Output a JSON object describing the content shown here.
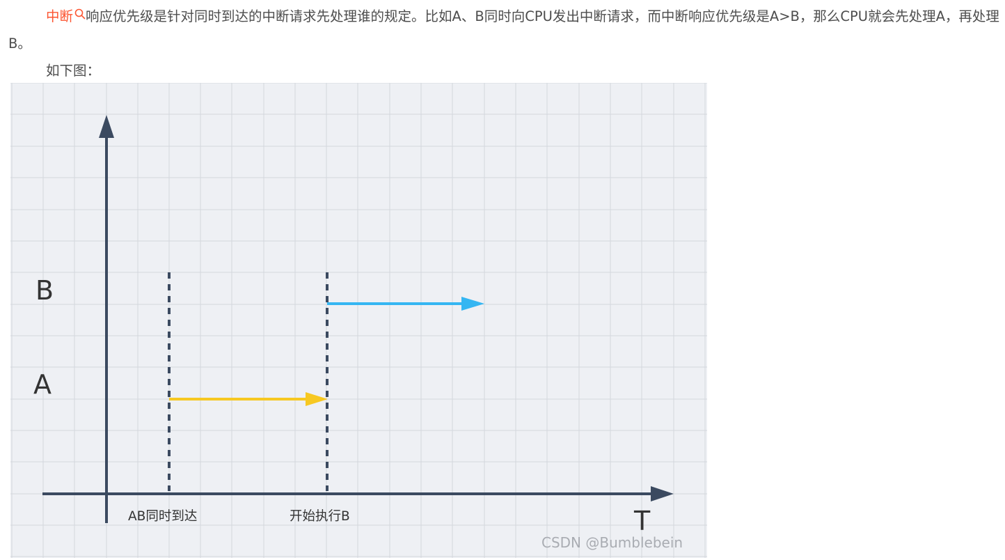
{
  "article": {
    "keyword_link": "中断",
    "keyword_icon": "search-icon",
    "paragraph_rest": "响应优先级是针对同时到达的中断请求先处理谁的规定。比如A、B同时向CPU发出中断请求，而中断响应优先级是A>B，那么CPU就会先处理A，再处理B。",
    "intro_line": "如下图："
  },
  "figure": {
    "y_label_b": "B",
    "y_label_a": "A",
    "x_axis_label": "T",
    "event_1_label": "AB同时到达",
    "event_2_label": "开始执行B",
    "watermark": "CSDN @Bumblebein",
    "colors": {
      "axis": "#3b4a60",
      "arrow_a": "#f7c821",
      "arrow_b": "#35b6f2",
      "grid": "#d4d7dd",
      "background": "#eef0f4",
      "keyword": "#fc5531"
    }
  }
}
